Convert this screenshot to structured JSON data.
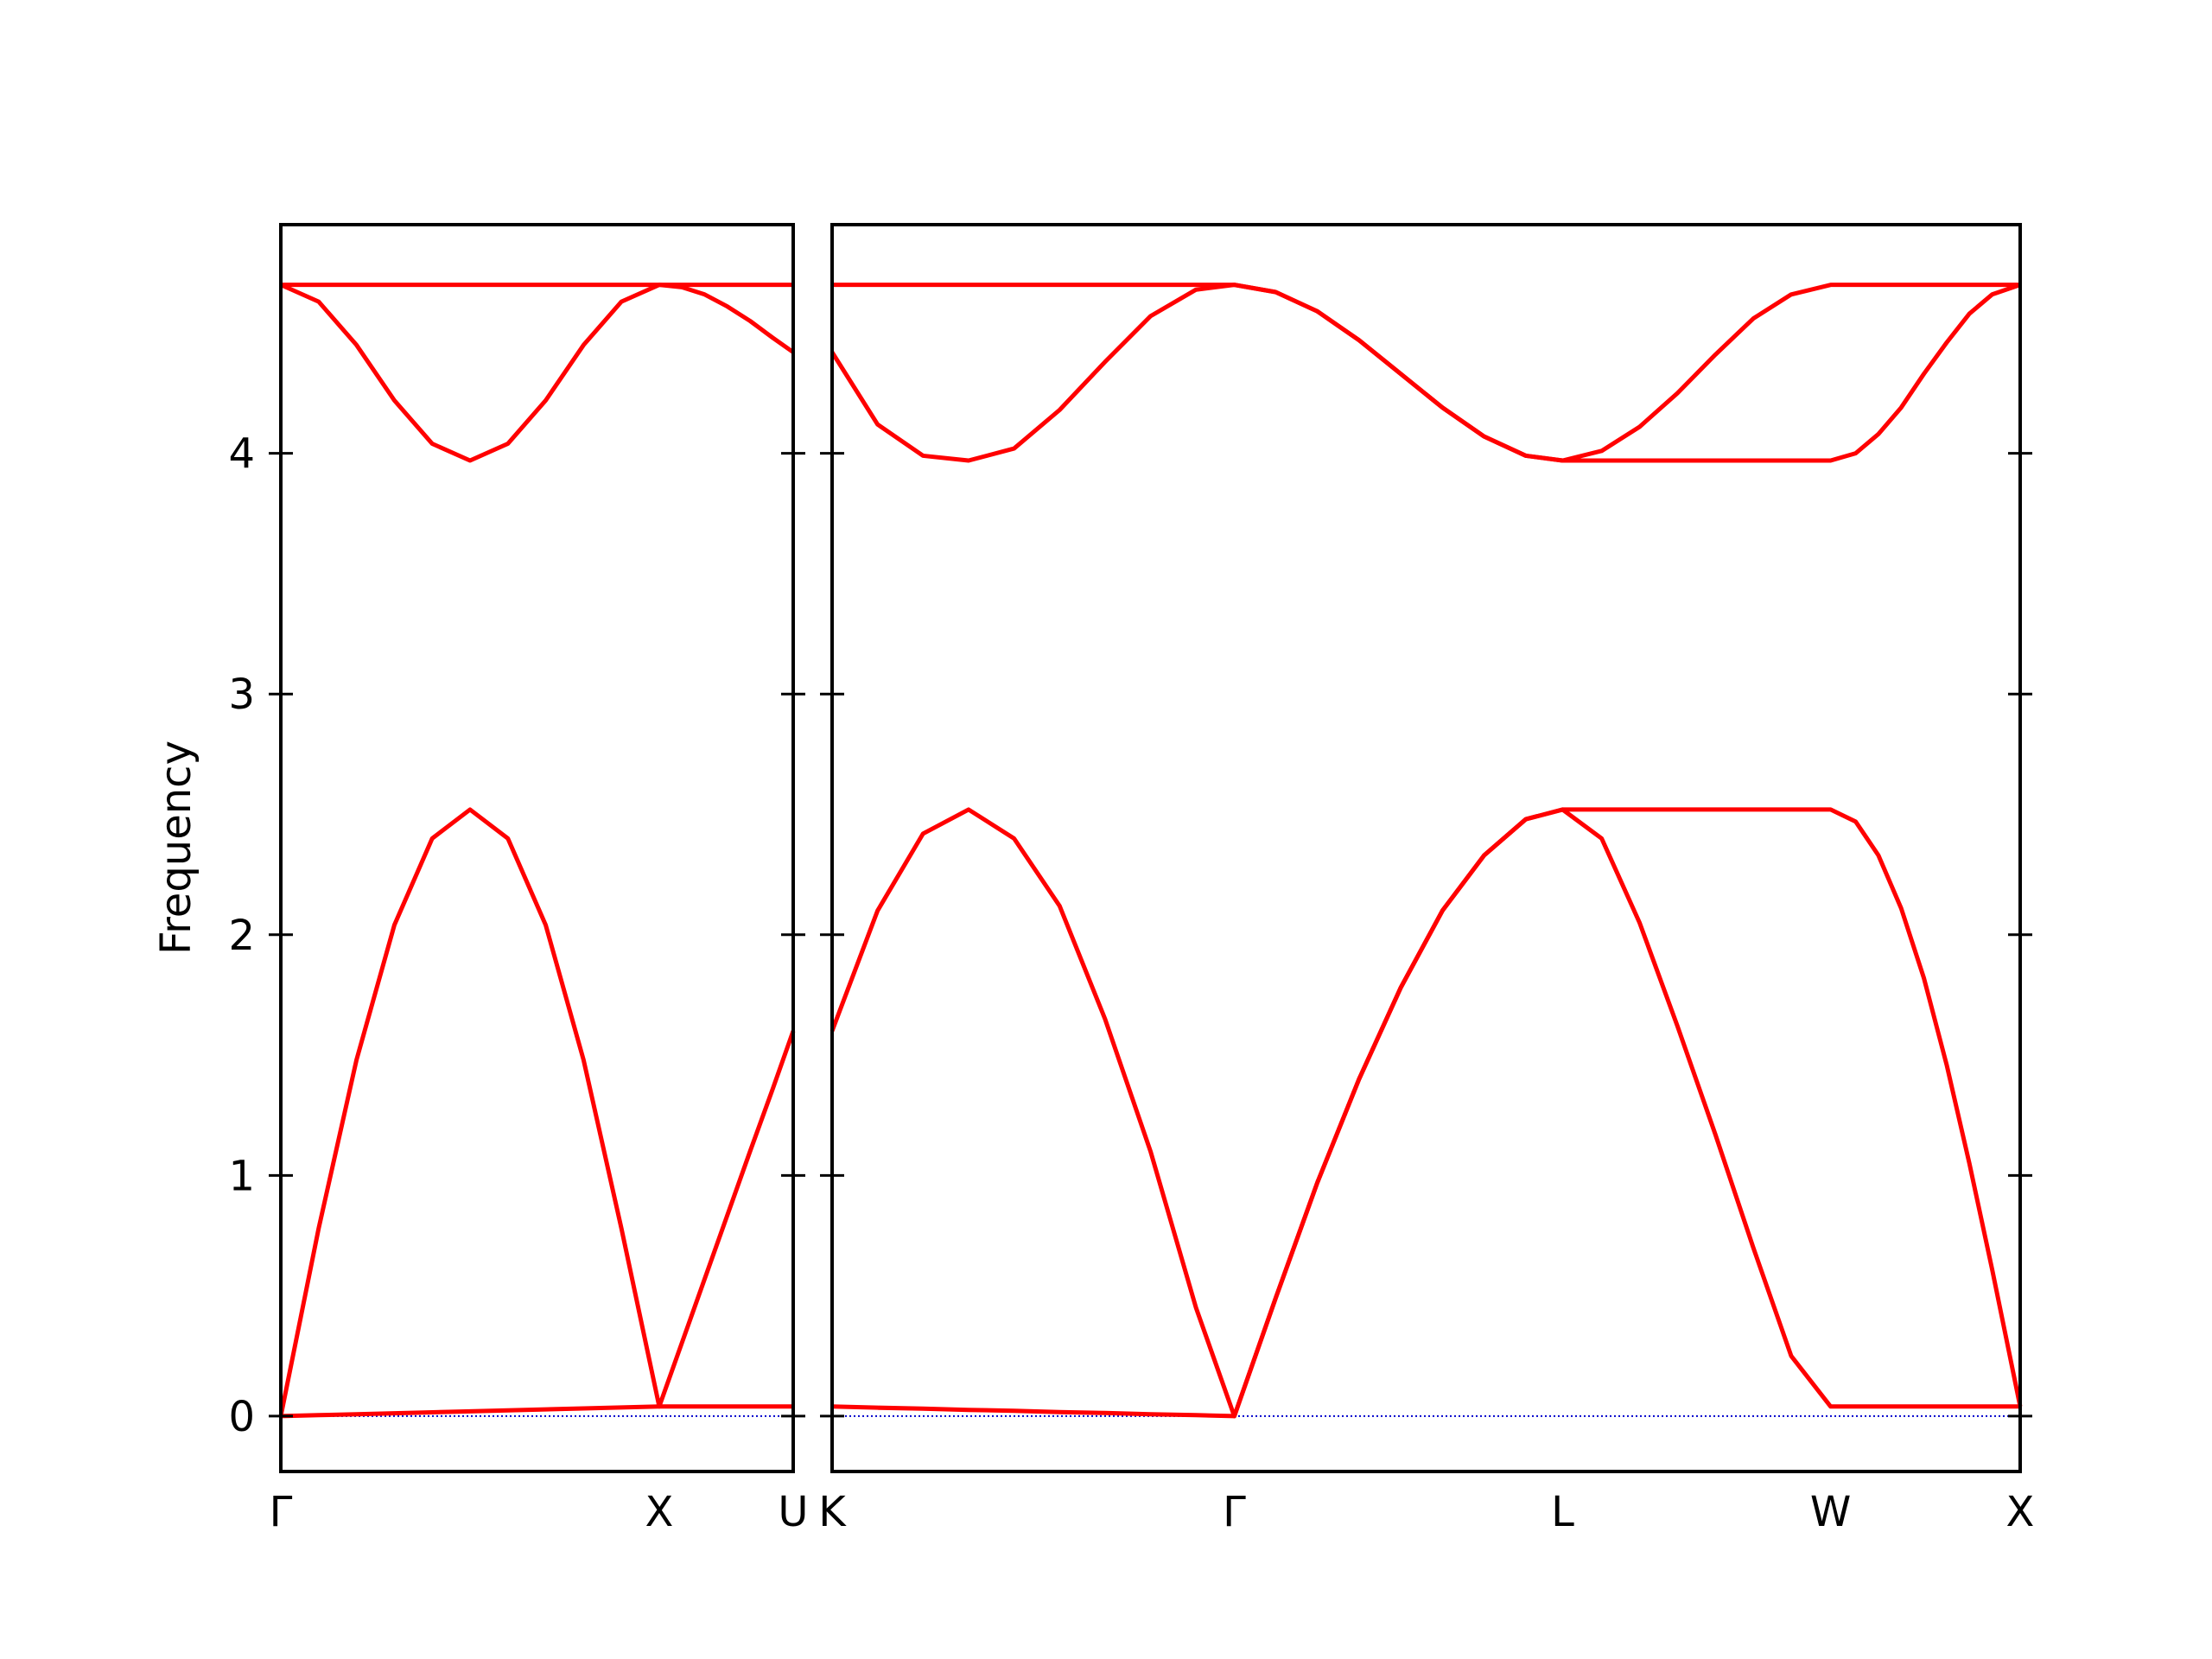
{
  "chart_data": [
    {
      "type": "line",
      "ylabel": "Frequency",
      "x": [
        0,
        0.1,
        0.2,
        0.3,
        0.4,
        0.5,
        0.6,
        0.7,
        0.8,
        0.9,
        1.0,
        1.06,
        1.12,
        1.18,
        1.24,
        1.3,
        1.354
      ],
      "series": [
        {
          "color": "#ff0000",
          "values": [
            0,
            0.004,
            0.008,
            0.012,
            0.016,
            0.02,
            0.024,
            0.028,
            0.032,
            0.036,
            0.04,
            0.04,
            0.04,
            0.04,
            0.04,
            0.04,
            0.04
          ]
        },
        {
          "color": "#ff0000",
          "values": [
            0,
            0.78,
            1.48,
            2.04,
            2.4,
            2.52,
            2.4,
            2.04,
            1.48,
            0.78,
            0.04,
            0.305,
            0.57,
            0.835,
            1.1,
            1.36,
            1.6
          ]
        },
        {
          "color": "#ff0000",
          "values": [
            4.7,
            4.63,
            4.45,
            4.22,
            4.04,
            3.97,
            4.04,
            4.22,
            4.45,
            4.63,
            4.7,
            4.69,
            4.66,
            4.61,
            4.55,
            4.48,
            4.42
          ]
        },
        {
          "color": "#ff0000",
          "values": [
            4.7,
            4.7,
            4.7,
            4.7,
            4.7,
            4.7,
            4.7,
            4.7,
            4.7,
            4.7,
            4.7,
            4.7,
            4.7,
            4.7,
            4.7,
            4.7,
            4.7
          ]
        }
      ],
      "xlim": [
        0,
        1.354
      ],
      "xticks": [
        {
          "value": 0,
          "label": "Γ"
        },
        {
          "value": 1.0,
          "label": "X"
        },
        {
          "value": 1.354,
          "label": "U"
        }
      ],
      "ylim": [
        -0.23,
        4.95
      ],
      "yticks": [
        0,
        1,
        2,
        3,
        4
      ],
      "zero_line": true,
      "zero_line_color": "#0000cc"
    },
    {
      "type": "line",
      "sharey": true,
      "x": [
        0,
        0.12,
        0.24,
        0.36,
        0.48,
        0.6,
        0.72,
        0.84,
        0.96,
        1.061,
        1.17,
        1.28,
        1.39,
        1.5,
        1.61,
        1.72,
        1.83,
        1.927,
        2.03,
        2.13,
        2.23,
        2.33,
        2.43,
        2.53,
        2.634,
        2.7,
        2.76,
        2.82,
        2.88,
        2.94,
        3.0,
        3.06,
        3.134
      ],
      "series": [
        {
          "color": "#ff0000",
          "values": [
            0.04,
            0.035,
            0.031,
            0.026,
            0.022,
            0.017,
            0.013,
            0.008,
            0.004,
            0,
            0.49,
            0.97,
            1.4,
            1.78,
            2.1,
            2.33,
            2.48,
            2.52,
            2.4,
            2.05,
            1.62,
            1.17,
            0.7,
            0.25,
            0.04,
            0.04,
            0.04,
            0.04,
            0.04,
            0.04,
            0.04,
            0.04,
            0.04
          ]
        },
        {
          "color": "#ff0000",
          "values": [
            1.6,
            2.1,
            2.42,
            2.52,
            2.4,
            2.12,
            1.65,
            1.1,
            0.45,
            0,
            0.49,
            0.97,
            1.4,
            1.78,
            2.1,
            2.33,
            2.48,
            2.52,
            2.52,
            2.52,
            2.52,
            2.52,
            2.52,
            2.52,
            2.52,
            2.47,
            2.33,
            2.11,
            1.82,
            1.46,
            1.05,
            0.61,
            0.04
          ]
        },
        {
          "color": "#ff0000",
          "values": [
            4.42,
            4.12,
            3.99,
            3.97,
            4.02,
            4.18,
            4.38,
            4.57,
            4.68,
            4.7,
            4.67,
            4.59,
            4.47,
            4.33,
            4.19,
            4.07,
            3.99,
            3.97,
            3.97,
            3.97,
            3.97,
            3.97,
            3.97,
            3.97,
            3.97,
            4.0,
            4.08,
            4.19,
            4.33,
            4.46,
            4.58,
            4.66,
            4.7
          ]
        },
        {
          "color": "#ff0000",
          "values": [
            4.7,
            4.7,
            4.7,
            4.7,
            4.7,
            4.7,
            4.7,
            4.7,
            4.7,
            4.7,
            4.67,
            4.59,
            4.47,
            4.33,
            4.19,
            4.07,
            3.99,
            3.97,
            4.01,
            4.11,
            4.25,
            4.41,
            4.56,
            4.66,
            4.7,
            4.7,
            4.7,
            4.7,
            4.7,
            4.7,
            4.7,
            4.7,
            4.7
          ]
        }
      ],
      "xlim": [
        0,
        3.134
      ],
      "xticks": [
        {
          "value": 0,
          "label": "K"
        },
        {
          "value": 1.061,
          "label": "Γ"
        },
        {
          "value": 1.927,
          "label": "L"
        },
        {
          "value": 2.634,
          "label": "W"
        },
        {
          "value": 3.134,
          "label": "X"
        }
      ],
      "zero_line": true,
      "zero_line_color": "#0000cc"
    }
  ]
}
